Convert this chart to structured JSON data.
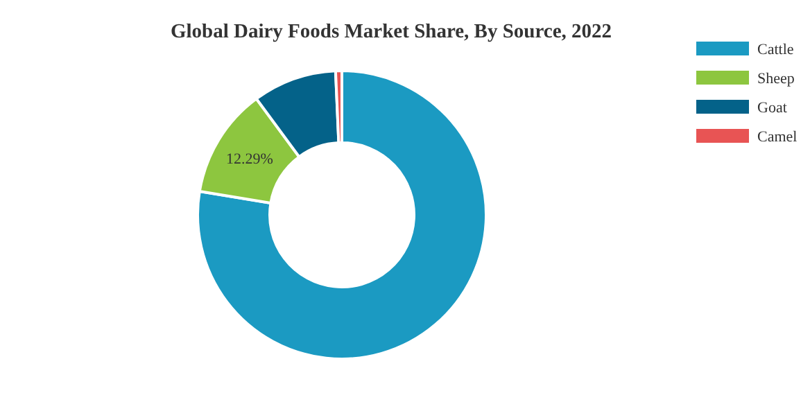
{
  "chart_data": {
    "type": "donut",
    "title": "Global Dairy Foods Market Share, By Source, 2022",
    "categories": [
      "Cattle",
      "Sheep",
      "Goat",
      "Camel"
    ],
    "values": [
      77.61,
      12.29,
      9.4,
      0.7
    ],
    "colors": [
      "#1b9ac2",
      "#8dc63f",
      "#046289",
      "#e85454"
    ],
    "value_labels": [
      null,
      "12.29%",
      null,
      null
    ],
    "legend": "right"
  }
}
